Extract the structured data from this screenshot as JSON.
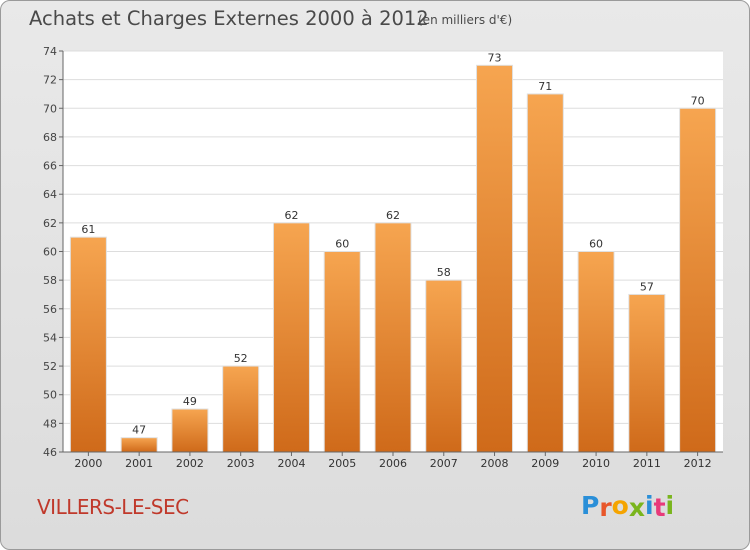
{
  "title": "Achats et Charges Externes 2000 à 2012",
  "unit": "(en milliers d'€)",
  "commune": "VILLERS-LE-SEC",
  "logo": {
    "text": "Proxiti",
    "letters": [
      "P",
      "r",
      "o",
      "x",
      "i",
      "t",
      "i"
    ],
    "colors": [
      "#2a8fd8",
      "#e8562a",
      "#f5a400",
      "#7ab51d",
      "#2a8fd8",
      "#e83a7a",
      "#7ab51d"
    ]
  },
  "colors": {
    "bar": "#f29a42",
    "bar_dark": "#d9741f",
    "title": "#4a4a4a",
    "commune": "#c0392b"
  },
  "chart_data": {
    "type": "bar",
    "title": "Achats et Charges Externes 2000 à 2012",
    "subtitle": "(en milliers d'€)",
    "categories": [
      "2000",
      "2001",
      "2002",
      "2003",
      "2004",
      "2005",
      "2006",
      "2007",
      "2008",
      "2009",
      "2010",
      "2011",
      "2012"
    ],
    "values": [
      61,
      47,
      49,
      52,
      62,
      60,
      62,
      58,
      73,
      71,
      60,
      57,
      70
    ],
    "ylim": [
      46,
      74
    ],
    "yticks": [
      46,
      48,
      50,
      52,
      54,
      56,
      58,
      60,
      62,
      64,
      66,
      68,
      70,
      72,
      74
    ],
    "grid": true,
    "data_labels": true
  }
}
